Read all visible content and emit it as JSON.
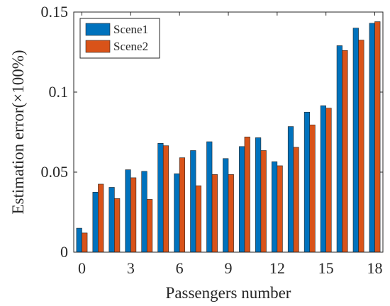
{
  "chart_data": {
    "type": "bar",
    "xlabel": "Passengers number",
    "ylabel": "Estimation error(×100%)",
    "x": [
      0,
      1,
      2,
      3,
      4,
      5,
      6,
      7,
      8,
      9,
      10,
      11,
      12,
      13,
      14,
      15,
      16,
      17,
      18
    ],
    "x_ticks": [
      "0",
      "3",
      "6",
      "9",
      "12",
      "15",
      "18"
    ],
    "y_ticks": [
      "0",
      "0.05",
      "0.1",
      "0.15"
    ],
    "ylim": [
      0,
      0.15
    ],
    "legend_position": "top-left",
    "series": [
      {
        "name": "Scene1",
        "color": "#0072BD",
        "values": [
          0.015,
          0.0375,
          0.0405,
          0.0515,
          0.0505,
          0.068,
          0.049,
          0.0635,
          0.069,
          0.0585,
          0.066,
          0.0715,
          0.0565,
          0.0785,
          0.0875,
          0.0915,
          0.129,
          0.14,
          0.143
        ]
      },
      {
        "name": "Scene2",
        "color": "#D95319",
        "values": [
          0.012,
          0.0425,
          0.0335,
          0.0465,
          0.033,
          0.0665,
          0.059,
          0.0415,
          0.0485,
          0.0485,
          0.072,
          0.0635,
          0.054,
          0.0655,
          0.0795,
          0.09,
          0.126,
          0.1325,
          0.144
        ]
      }
    ]
  }
}
